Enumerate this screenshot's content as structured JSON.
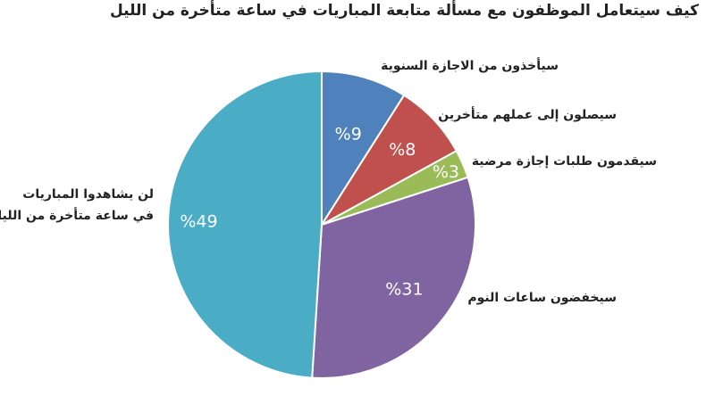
{
  "chart_data": {
    "type": "pie",
    "title": "كيف سيتعامل الموظفون مع مسألة متابعة المباريات في ساعة متأخرة من الليل",
    "start_angle": "top",
    "direction": "clockwise",
    "slices": [
      {
        "label": "سيأخذون من الاجازة السنوية",
        "value": 9,
        "data_label": "%9",
        "color": "#4f81bd"
      },
      {
        "label": "سيصلون إلى عملهم متأخرين",
        "value": 8,
        "data_label": "%8",
        "color": "#c0504d"
      },
      {
        "label": "سيقدمون طلبات إجازة مرضية",
        "value": 3,
        "data_label": "%3",
        "color": "#9bbb59"
      },
      {
        "label": "سيخفضون ساعات النوم",
        "value": 31,
        "data_label": "%31",
        "color": "#8064a2"
      },
      {
        "label": "لن يشاهدوا المباريات في ساعة متأخرة من الليل",
        "label_lines": [
          "لن يشاهدوا المباريات",
          "في ساعة متأخرة من الليل"
        ],
        "value": 49,
        "data_label": "%49",
        "color": "#4bacc6"
      }
    ]
  }
}
